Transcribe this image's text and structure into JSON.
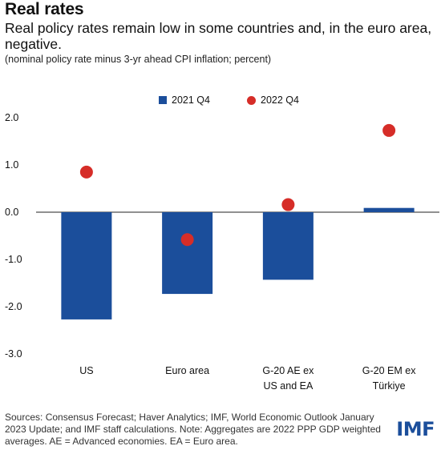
{
  "header": {
    "title": "Real rates",
    "subtitle": "Real policy rates remain low in some countries and, in the euro area, negative.",
    "note": "(nominal policy rate minus 3-yr ahead CPI inflation; percent)"
  },
  "chart_data": {
    "type": "bar",
    "categories": [
      [
        "US"
      ],
      [
        "Euro area"
      ],
      [
        "G-20 AE ex",
        "US and EA"
      ],
      [
        "G-20 EM ex",
        "Türkiye"
      ]
    ],
    "series": [
      {
        "name": "2021 Q4",
        "mark": "bar",
        "color": "#1b4e9b",
        "values": [
          -2.27,
          -1.73,
          -1.43,
          0.09
        ]
      },
      {
        "name": "2022 Q4",
        "mark": "dot",
        "color": "#d62d28",
        "values": [
          0.85,
          -0.58,
          0.16,
          1.73
        ]
      }
    ],
    "yticks": [
      "2.0",
      "1.0",
      "0.0",
      "-1.0",
      "-2.0",
      "-3.0"
    ],
    "ylim": [
      -3,
      2
    ],
    "grid": false,
    "legend_placement": "top"
  },
  "footer": {
    "source": "Sources: Consensus Forecast; Haver Analytics; IMF, World Economic Outlook January 2023 Update; and IMF staff calculations. Note: Aggregates are 2022 PPP GDP weighted averages. AE = Advanced economies. EA = Euro area.",
    "logo": "IMF"
  }
}
